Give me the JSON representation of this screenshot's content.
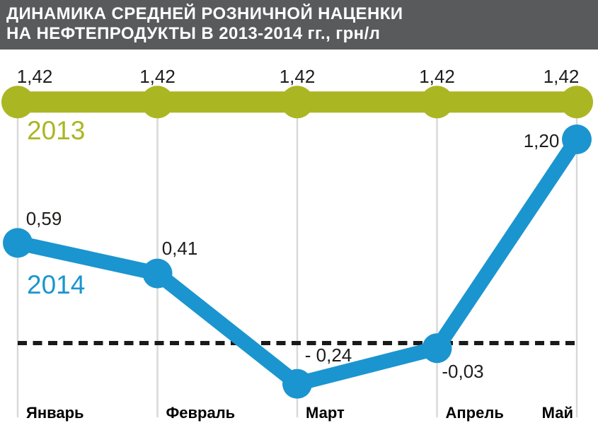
{
  "header": {
    "title_line1": "ДИНАМИКА СРЕДНЕЙ РОЗНИЧНОЙ НАЦЕНКИ",
    "title_line2": "НА НЕФТЕПРОДУКТЫ В 2013-2014 гг., грн/л"
  },
  "colors": {
    "header_bg": "#595a5c",
    "header_text": "#ffffff",
    "background": "#ffffff",
    "series_2013": "#abb623",
    "series_2014": "#1b95cf",
    "grid": "#d9d9d9",
    "value_label": "#1d1d1b",
    "month_label": "#000000",
    "zero_line": "#1a1a1a"
  },
  "chart_data": {
    "type": "line",
    "title": "ДИНАМИКА СРЕДНЕЙ РОЗНИЧНОЙ НАЦЕНКИ НА НЕФТЕПРОДУКТЫ В 2013-2014 гг., грн/л",
    "unit": "грн/л",
    "categories": [
      "Январь",
      "Февраль",
      "Март",
      "Апрель",
      "Май"
    ],
    "series": [
      {
        "name": "2013",
        "color": "#abb623",
        "values": [
          1.42,
          1.42,
          1.42,
          1.42,
          1.42
        ],
        "display_labels": [
          "1,42",
          "1,42",
          "1,42",
          "1,42",
          "1,42"
        ]
      },
      {
        "name": "2014",
        "color": "#1b95cf",
        "values": [
          0.59,
          0.41,
          -0.24,
          -0.03,
          1.2
        ],
        "display_labels": [
          "0,59",
          "0,41",
          "- 0,24",
          "-0,03",
          "1,20"
        ]
      }
    ],
    "zero_line_value": 0,
    "ylim": [
      -0.6,
      1.75
    ],
    "grid": "vertical month gridlines, dashed horizontal zero line",
    "legend": "series year labels drawn inline next to lines"
  }
}
